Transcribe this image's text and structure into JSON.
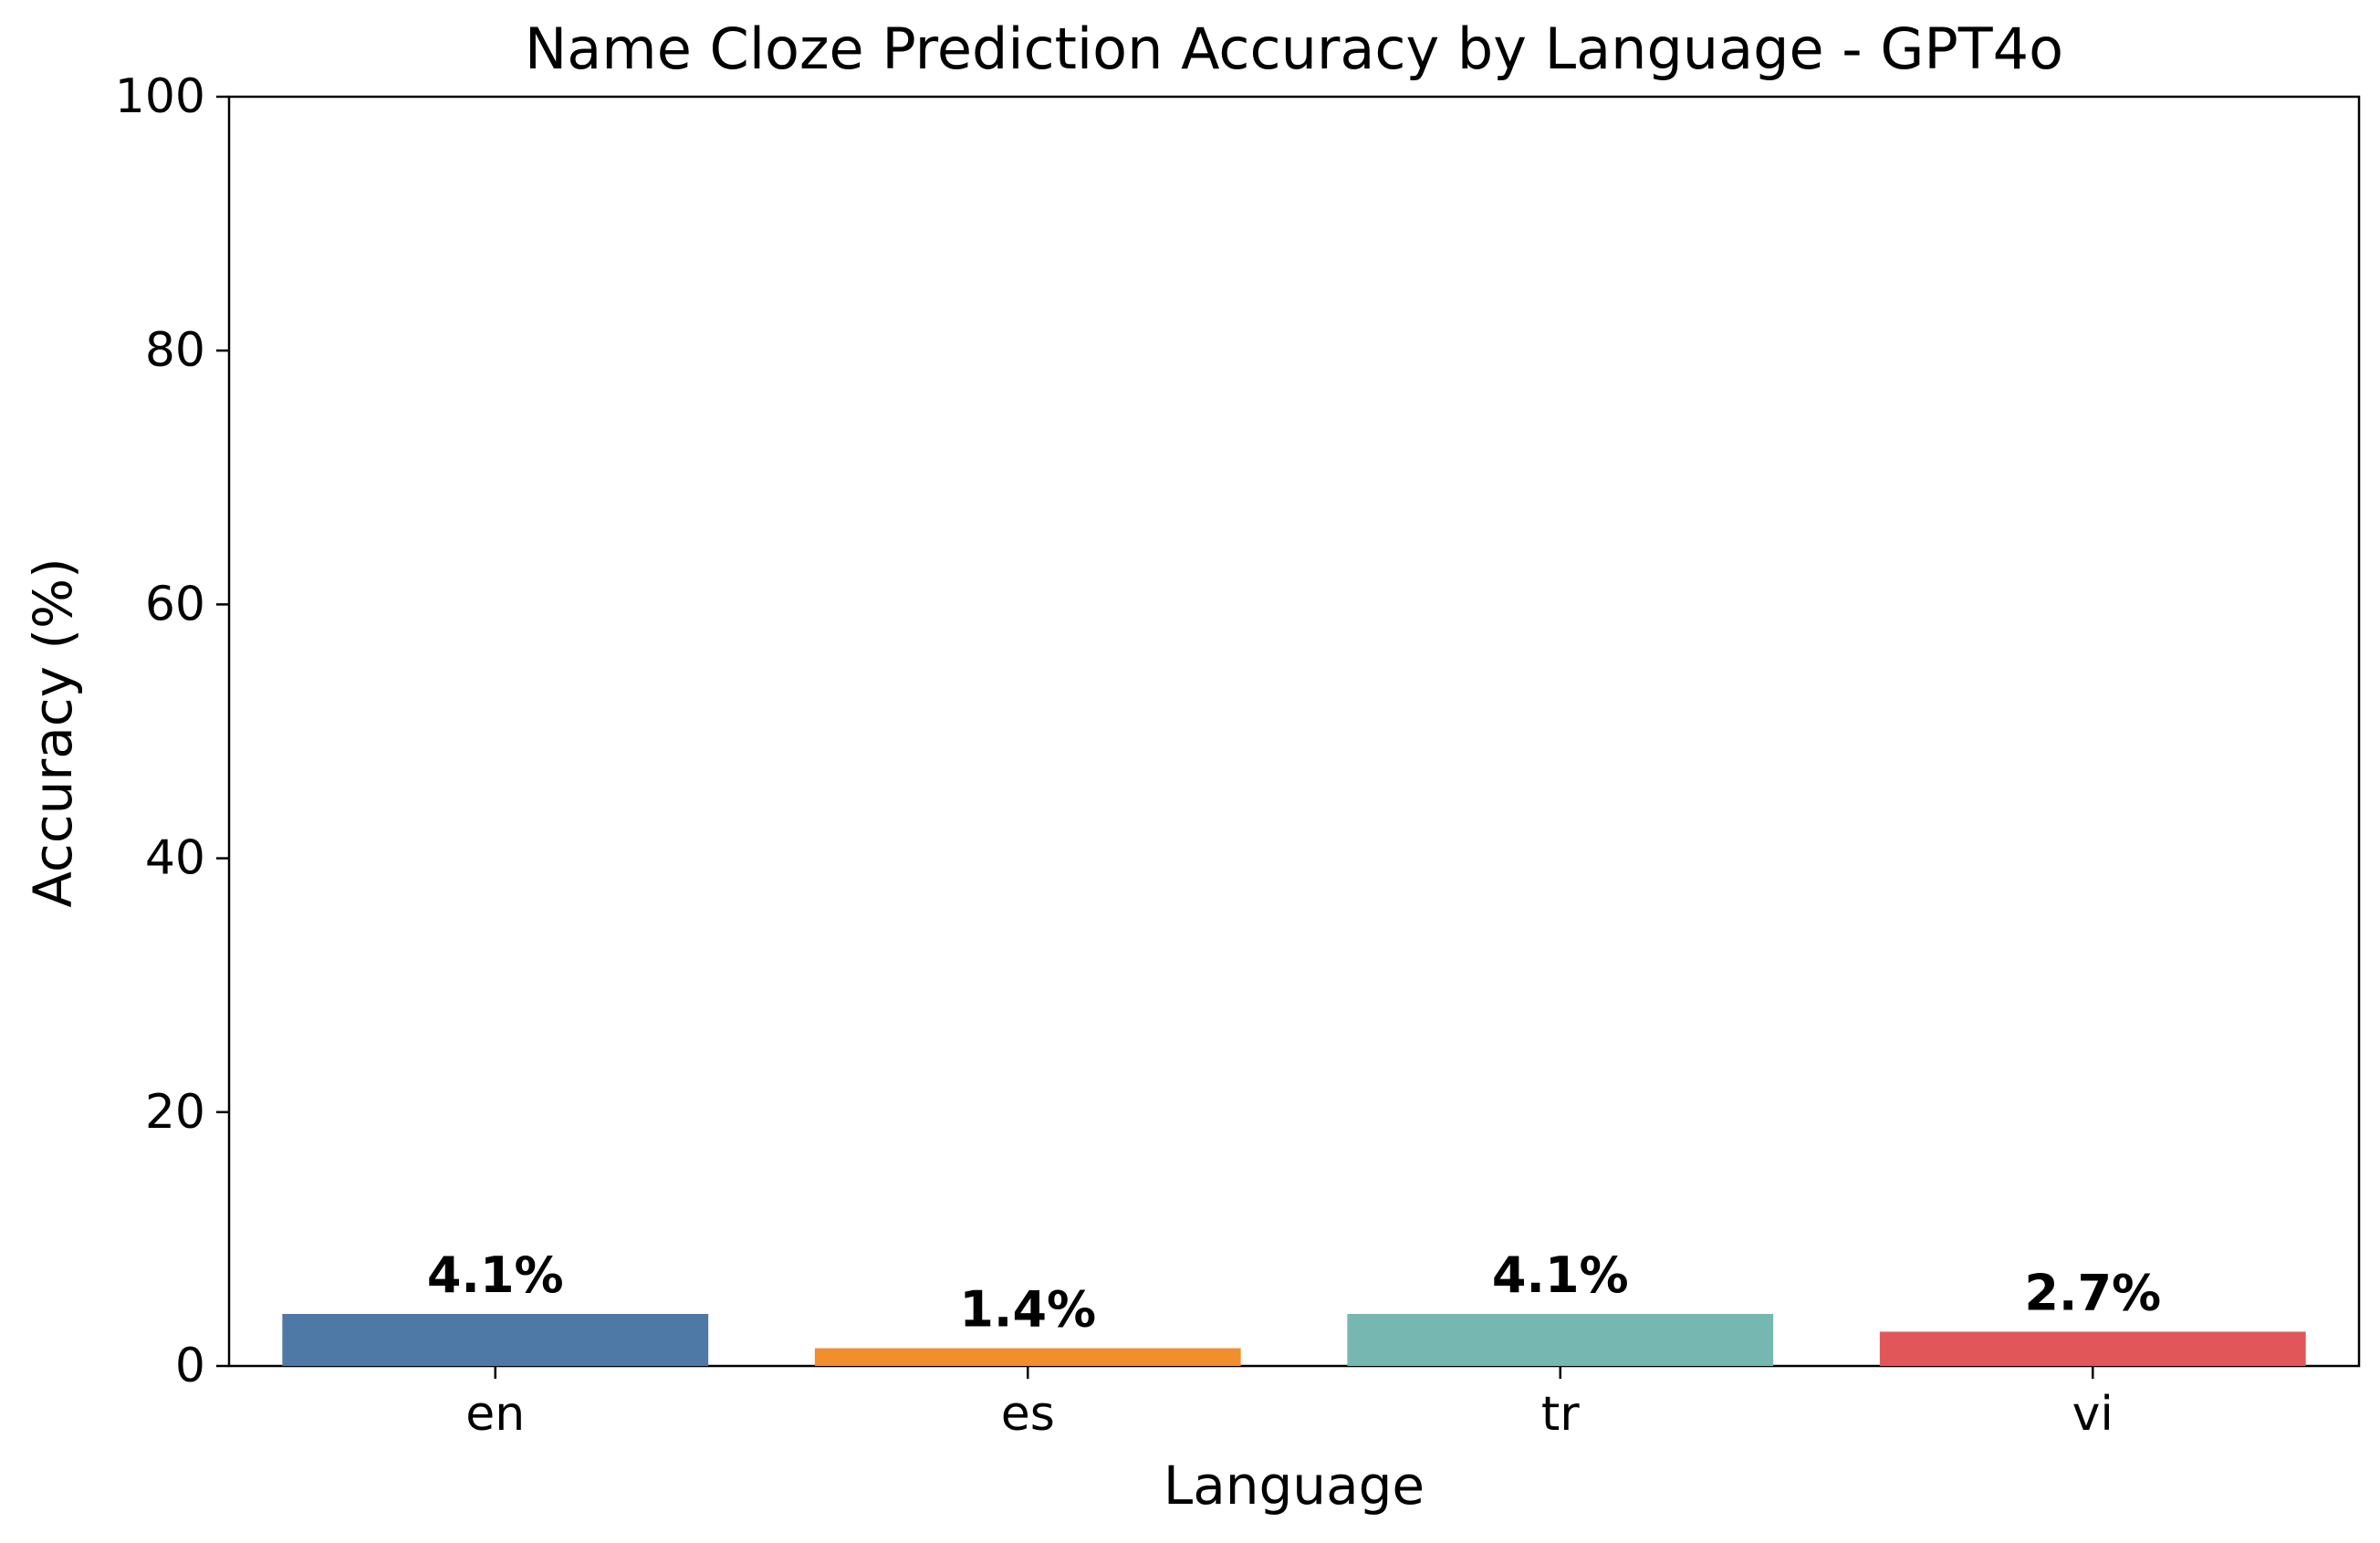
{
  "chart_data": {
    "type": "bar",
    "title": "Name Cloze Prediction Accuracy by Language - GPT4o",
    "xlabel": "Language",
    "ylabel": "Accuracy (%)",
    "categories": [
      "en",
      "es",
      "tr",
      "vi"
    ],
    "values": [
      4.1,
      1.4,
      4.1,
      2.7
    ],
    "data_labels": [
      "4.1%",
      "1.4%",
      "4.1%",
      "2.7%"
    ],
    "colors": [
      "#4e79a7",
      "#f28e2b",
      "#76b7b2",
      "#e15759"
    ],
    "ylim": [
      0,
      100
    ],
    "yticks": [
      0,
      20,
      40,
      60,
      80,
      100
    ],
    "grid": false,
    "legend": "none"
  }
}
